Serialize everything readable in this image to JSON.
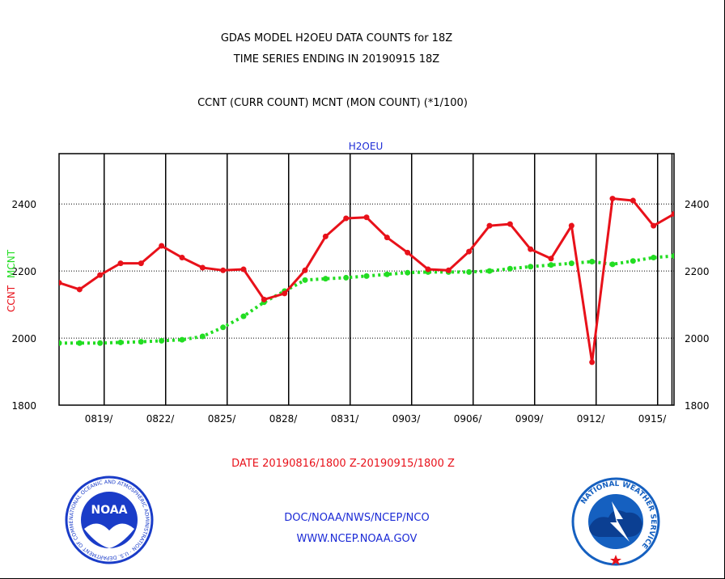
{
  "header": {
    "title_line1": "GDAS MODEL H2OEU DATA COUNTS for 18Z",
    "title_line2": "TIME SERIES ENDING IN 20190915 18Z",
    "legend_text": "CCNT (CURR COUNT) MCNT (MON COUNT) (*1/100)"
  },
  "footer": {
    "date_range": "DATE 20190816/1800 Z-20190915/1800 Z",
    "org_line": "DOC/NOAA/NWS/NCEP/NCO",
    "url_line": "WWW.NCEP.NOAA.GOV"
  },
  "logos": {
    "noaa_wordmark": "NOAA",
    "noaa_ring_text": "NATIONAL OCEANIC AND ATMOSPHERIC ADMINISTRATION · U.S. DEPARTMENT OF COMMERCE ·",
    "nws_ring_text": "NATIONAL WEATHER SERVICE"
  },
  "colors": {
    "ccnt": "#e8111a",
    "mcnt": "#22dd22",
    "label_blue": "#1c2bd6",
    "date_red": "#e8111a",
    "noaa_blue": "#1a3cc8",
    "nws_blue": "#1560c0"
  },
  "chart_data": {
    "type": "line",
    "plot_title": "H2OEU",
    "ylabel_ccnt": "CCNT",
    "ylabel_mcnt": "MCNT",
    "ylim": [
      1800,
      2550
    ],
    "yticks": [
      1800,
      2000,
      2200,
      2400
    ],
    "xlim": [
      0,
      30
    ],
    "xticks": [
      {
        "x": 3,
        "label": "0819/"
      },
      {
        "x": 6,
        "label": "0822/"
      },
      {
        "x": 9,
        "label": "0825/"
      },
      {
        "x": 12,
        "label": "0828/"
      },
      {
        "x": 15,
        "label": "0831/"
      },
      {
        "x": 18,
        "label": "0903/"
      },
      {
        "x": 21,
        "label": "0906/"
      },
      {
        "x": 24,
        "label": "0909/"
      },
      {
        "x": 27,
        "label": "0912/"
      },
      {
        "x": 30,
        "label": "0915/"
      }
    ],
    "gridlines_x": [
      2.2,
      5.2,
      8.2,
      11.2,
      14.2,
      17.2,
      20.2,
      23.2,
      26.2,
      29.2,
      29.9
    ],
    "grid_y": true,
    "series": [
      {
        "name": "CCNT",
        "x": [
          0,
          1,
          2,
          3,
          4,
          5,
          6,
          7,
          8,
          9,
          10,
          11,
          12,
          13,
          14,
          15,
          16,
          17,
          18,
          19,
          20,
          21,
          22,
          23,
          24,
          25,
          26,
          27,
          28,
          29,
          30
        ],
        "values": [
          2165,
          2145,
          2188,
          2223,
          2223,
          2275,
          2240,
          2210,
          2202,
          2205,
          2115,
          2133,
          2202,
          2303,
          2357,
          2360,
          2300,
          2255,
          2205,
          2202,
          2258,
          2335,
          2340,
          2265,
          2237,
          2335,
          1928,
          2416,
          2410,
          2335,
          2370
        ]
      },
      {
        "name": "MCNT",
        "x": [
          0,
          1,
          2,
          3,
          4,
          5,
          6,
          7,
          8,
          9,
          10,
          11,
          12,
          13,
          14,
          15,
          16,
          17,
          18,
          19,
          20,
          21,
          22,
          23,
          24,
          25,
          26,
          27,
          28,
          29,
          30
        ],
        "values": [
          1985,
          1985,
          1985,
          1987,
          1989,
          1992,
          1995,
          2005,
          2032,
          2065,
          2107,
          2140,
          2173,
          2177,
          2180,
          2185,
          2190,
          2195,
          2197,
          2197,
          2197,
          2200,
          2207,
          2213,
          2218,
          2223,
          2228,
          2220,
          2230,
          2240,
          2245
        ]
      }
    ]
  }
}
